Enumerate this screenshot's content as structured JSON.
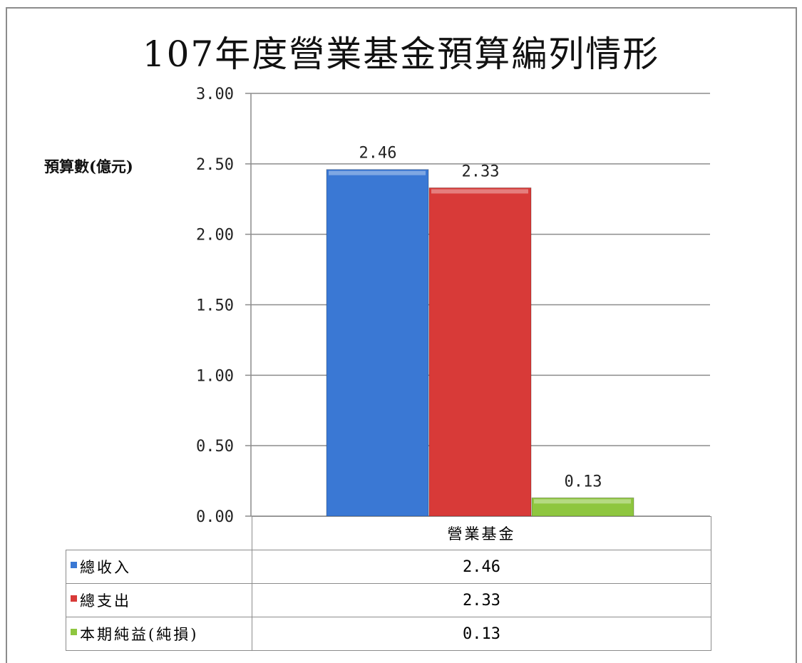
{
  "chart_data": {
    "type": "bar",
    "title": "107年度營業基金預算編列情形",
    "ylabel": "預算數(億元)",
    "categories": [
      "營業基金"
    ],
    "ylim": [
      0,
      3
    ],
    "yticks": [
      "3.00",
      "2.50",
      "2.00",
      "1.50",
      "1.00",
      "0.50",
      "0.00"
    ],
    "ytick_values": [
      3.0,
      2.5,
      2.0,
      1.5,
      1.0,
      0.5,
      0.0
    ],
    "grid": true,
    "legend": "data-table",
    "series": [
      {
        "name": "總收入",
        "values": [
          2.46
        ],
        "label": "2.46",
        "color": "#3a78d4"
      },
      {
        "name": "總支出",
        "values": [
          2.33
        ],
        "label": "2.33",
        "color": "#d83a38"
      },
      {
        "name": "本期純益(純損)",
        "values": [
          0.13
        ],
        "label": "0.13",
        "color": "#8ec63f"
      }
    ]
  }
}
